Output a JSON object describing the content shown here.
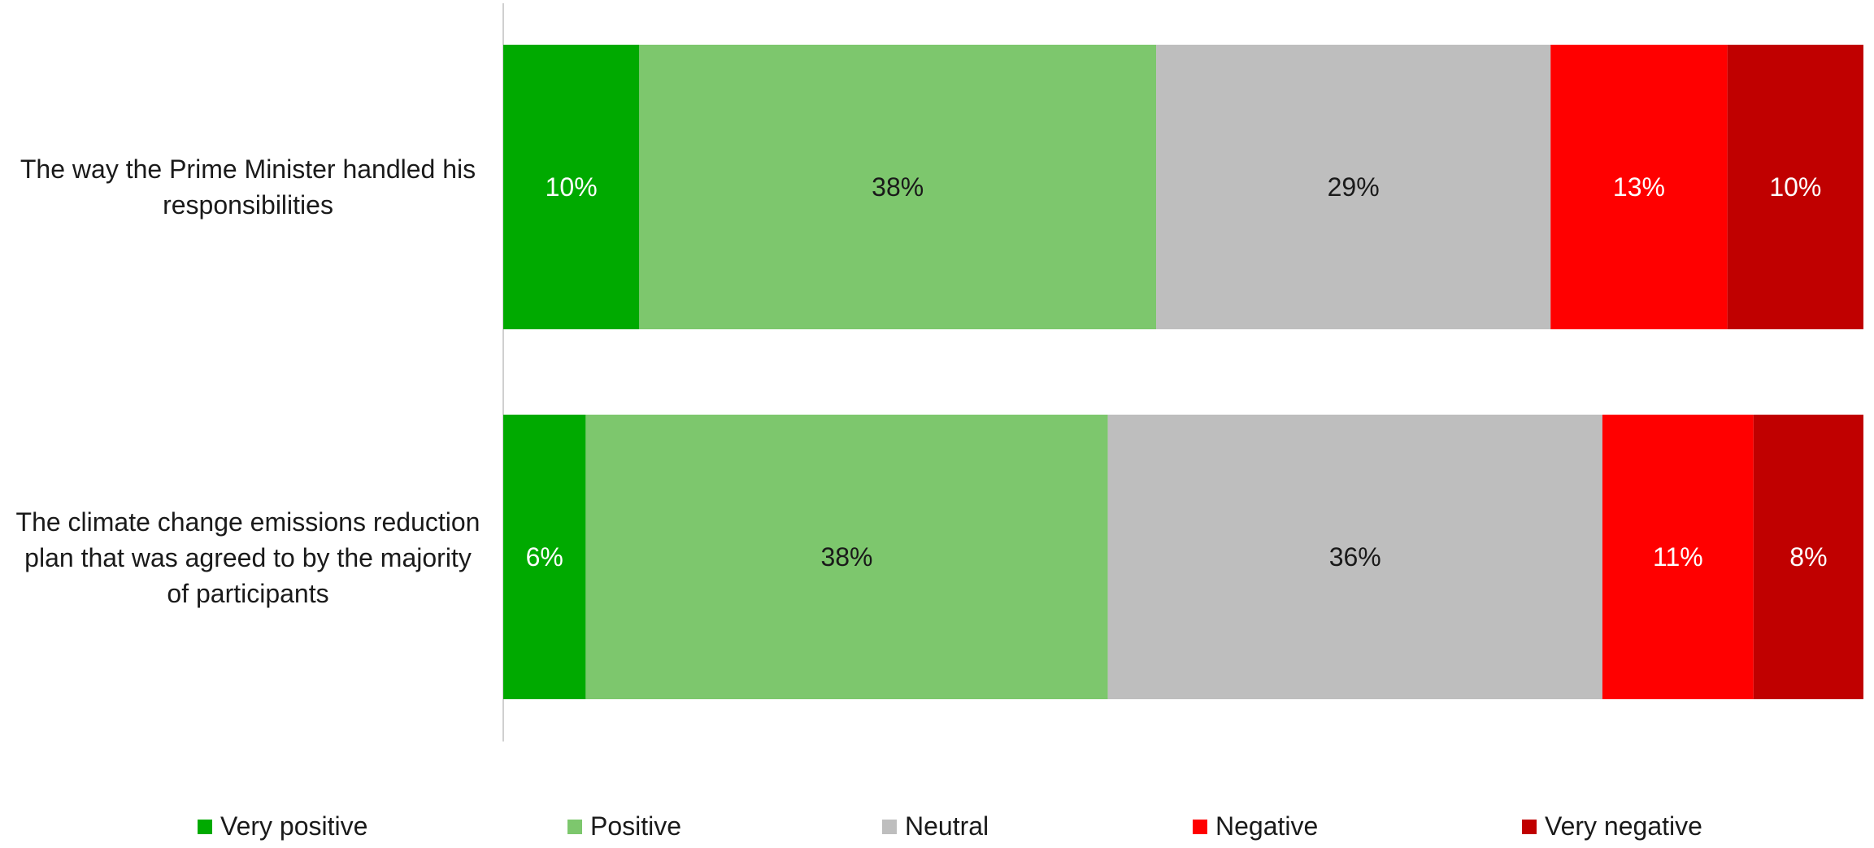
{
  "chart_data": {
    "type": "bar",
    "orientation": "horizontal-stacked-100",
    "categories": [
      "The way the Prime Minister handled his responsibilities",
      "The climate change emissions reduction plan that was agreed to by the majority of participants"
    ],
    "category_lines": [
      [
        "The way the Prime Minister handled his",
        "responsibilities"
      ],
      [
        "The climate change emissions reduction",
        "plan that was agreed to by the majority",
        "of participants"
      ]
    ],
    "series": [
      {
        "name": "Very positive",
        "values": [
          10,
          6
        ],
        "labels": [
          "10%",
          "6%"
        ],
        "color": "#00AA00",
        "label_color": "#ffffff"
      },
      {
        "name": "Positive",
        "values": [
          38,
          38
        ],
        "labels": [
          "38%",
          "38%"
        ],
        "color": "#7DC76D",
        "label_color": "#1a1a1a"
      },
      {
        "name": "Neutral",
        "values": [
          29,
          36
        ],
        "labels": [
          "29%",
          "36%"
        ],
        "color": "#BEBEBE",
        "label_color": "#1a1a1a"
      },
      {
        "name": "Negative",
        "values": [
          13,
          11
        ],
        "labels": [
          "13%",
          "11%"
        ],
        "color": "#FF0000",
        "label_color": "#ffffff"
      },
      {
        "name": "Very negative",
        "values": [
          10,
          8
        ],
        "labels": [
          "10%",
          "8%"
        ],
        "color": "#C00000",
        "label_color": "#ffffff"
      }
    ],
    "xlim": [
      0,
      100
    ],
    "grid": false,
    "legend_position": "bottom"
  }
}
